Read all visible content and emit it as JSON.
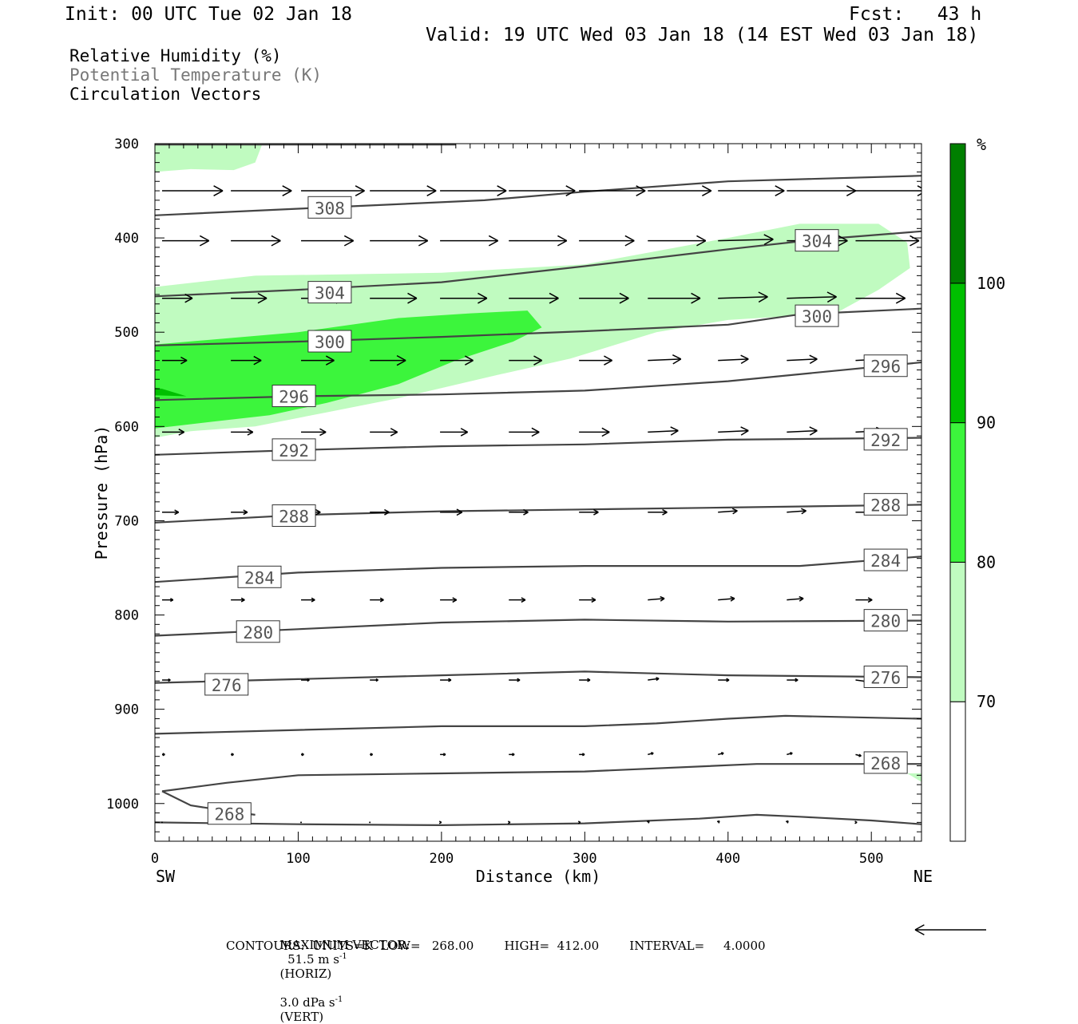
{
  "header": {
    "init": "Init: 00 UTC Tue 02 Jan 18",
    "fcst": "Fcst:   43 h",
    "valid": "Valid: 19 UTC Wed 03 Jan 18 (14 EST Wed 03 Jan 18)"
  },
  "legend_lines": {
    "rh": "Relative Humidity (%)",
    "theta": "Potential Temperature (K)",
    "vectors": "Circulation Vectors"
  },
  "footer": {
    "max_vector_label": "MAXIMUM VECTOR:",
    "horiz_value": "51.5 m s",
    "horiz_exp": "-1",
    "horiz_tag": "(HORIZ)",
    "vert_value": "3.0 dPa s",
    "vert_exp": "-1",
    "vert_tag": "(VERT)",
    "contours": "CONTOURS:  UNITS=K  LOW=   268.00        HIGH=  412.00        INTERVAL=     4.0000"
  },
  "colors": {
    "rh70": "#c0fbc0",
    "rh80": "#3cf53c",
    "rh90": "#00bf00",
    "rh100": "#007f00",
    "contour": "#444444",
    "text_grey": "#777777"
  },
  "chart_data": {
    "type": "cross-section",
    "x_axis": {
      "label": "Distance (km)",
      "range": [
        0,
        535
      ],
      "ticks": [
        0,
        100,
        200,
        300,
        400,
        500
      ],
      "left_end": "SW",
      "right_end": "NE"
    },
    "y_axis": {
      "label": "Pressure (hPa)",
      "range": [
        300,
        1040
      ],
      "inverted": true,
      "ticks": [
        300,
        400,
        500,
        600,
        700,
        800,
        900,
        1000
      ]
    },
    "colorbar": {
      "unit": "%",
      "levels": [
        70,
        80,
        90,
        100
      ],
      "colors": [
        "#c0fbc0",
        "#3cf53c",
        "#00bf00",
        "#007f00"
      ]
    },
    "rh_fill": [
      {
        "level": 70,
        "polygon": [
          [
            0,
            330
          ],
          [
            25,
            327
          ],
          [
            55,
            328
          ],
          [
            70,
            320
          ],
          [
            75,
            300
          ],
          [
            0,
            300
          ]
        ]
      },
      {
        "level": 70,
        "polygon": [
          [
            0,
            452
          ],
          [
            70,
            440
          ],
          [
            200,
            437
          ],
          [
            300,
            428
          ],
          [
            400,
            400
          ],
          [
            450,
            385
          ],
          [
            505,
            385
          ],
          [
            525,
            405
          ],
          [
            527,
            432
          ],
          [
            505,
            455
          ],
          [
            475,
            480
          ],
          [
            400,
            487
          ],
          [
            350,
            500
          ],
          [
            290,
            528
          ],
          [
            240,
            545
          ],
          [
            170,
            570
          ],
          [
            120,
            585
          ],
          [
            70,
            600
          ],
          [
            25,
            605
          ],
          [
            0,
            612
          ]
        ]
      },
      {
        "level": 80,
        "polygon": [
          [
            0,
            513
          ],
          [
            100,
            500
          ],
          [
            170,
            485
          ],
          [
            220,
            480
          ],
          [
            260,
            477
          ],
          [
            270,
            495
          ],
          [
            250,
            510
          ],
          [
            210,
            530
          ],
          [
            170,
            555
          ],
          [
            120,
            575
          ],
          [
            80,
            588
          ],
          [
            40,
            595
          ],
          [
            0,
            602
          ]
        ]
      },
      {
        "level": 90,
        "polygon": [
          [
            0,
            559
          ],
          [
            0,
            567
          ],
          [
            22,
            568
          ],
          [
            5,
            560
          ]
        ]
      },
      {
        "level": 70,
        "polygon": [
          [
            525,
            968
          ],
          [
            535,
            968
          ],
          [
            535,
            977
          ]
        ]
      }
    ],
    "theta_contours": [
      {
        "value": 268,
        "points": [
          [
            0,
            1020
          ],
          [
            100,
            1022
          ],
          [
            200,
            1023
          ],
          [
            300,
            1021
          ],
          [
            380,
            1016
          ],
          [
            420,
            1012
          ],
          [
            450,
            1014
          ],
          [
            500,
            1018
          ],
          [
            535,
            1022
          ]
        ],
        "labels": [
          [
            52,
            1011
          ]
        ]
      },
      {
        "value": 268,
        "points": [
          [
            5,
            987
          ],
          [
            50,
            978
          ],
          [
            100,
            970
          ],
          [
            200,
            968
          ],
          [
            300,
            966
          ],
          [
            420,
            958
          ],
          [
            535,
            958
          ]
        ],
        "labels": [
          [
            510,
            957
          ]
        ]
      },
      {
        "value": 268,
        "points": [
          [
            5,
            987
          ],
          [
            25,
            1002
          ],
          [
            55,
            1009
          ],
          [
            70,
            1012
          ]
        ]
      },
      {
        "value": 272,
        "points": [
          [
            0,
            926
          ],
          [
            100,
            922
          ],
          [
            200,
            918
          ],
          [
            300,
            918
          ],
          [
            350,
            915
          ],
          [
            400,
            910
          ],
          [
            440,
            907
          ],
          [
            535,
            910
          ]
        ],
        "labels": []
      },
      {
        "value": 276,
        "points": [
          [
            0,
            872
          ],
          [
            100,
            868
          ],
          [
            200,
            864
          ],
          [
            300,
            860
          ],
          [
            350,
            862
          ],
          [
            400,
            864
          ],
          [
            535,
            866
          ]
        ],
        "labels": [
          [
            50,
            874
          ],
          [
            510,
            866
          ]
        ]
      },
      {
        "value": 280,
        "points": [
          [
            0,
            822
          ],
          [
            100,
            815
          ],
          [
            200,
            808
          ],
          [
            300,
            805
          ],
          [
            400,
            807
          ],
          [
            535,
            806
          ]
        ],
        "labels": [
          [
            72,
            818
          ],
          [
            510,
            806
          ]
        ]
      },
      {
        "value": 284,
        "points": [
          [
            0,
            765
          ],
          [
            100,
            755
          ],
          [
            200,
            750
          ],
          [
            300,
            748
          ],
          [
            400,
            748
          ],
          [
            450,
            748
          ],
          [
            535,
            738
          ]
        ],
        "labels": [
          [
            73,
            760
          ],
          [
            510,
            742
          ]
        ]
      },
      {
        "value": 288,
        "points": [
          [
            0,
            702
          ],
          [
            100,
            694
          ],
          [
            200,
            690
          ],
          [
            300,
            688
          ],
          [
            400,
            686
          ],
          [
            535,
            683
          ]
        ],
        "labels": [
          [
            97,
            695
          ],
          [
            510,
            683
          ]
        ]
      },
      {
        "value": 292,
        "points": [
          [
            0,
            630
          ],
          [
            100,
            625
          ],
          [
            200,
            621
          ],
          [
            300,
            619
          ],
          [
            400,
            614
          ],
          [
            535,
            612
          ]
        ],
        "labels": [
          [
            97,
            625
          ],
          [
            510,
            614
          ]
        ]
      },
      {
        "value": 296,
        "points": [
          [
            0,
            572
          ],
          [
            100,
            568
          ],
          [
            200,
            566
          ],
          [
            300,
            562
          ],
          [
            400,
            552
          ],
          [
            535,
            532
          ]
        ],
        "labels": [
          [
            97,
            568
          ],
          [
            510,
            536
          ]
        ]
      },
      {
        "value": 300,
        "points": [
          [
            0,
            514
          ],
          [
            100,
            510
          ],
          [
            200,
            505
          ],
          [
            300,
            499
          ],
          [
            400,
            492
          ],
          [
            450,
            481
          ],
          [
            535,
            475
          ]
        ],
        "labels": [
          [
            122,
            510
          ],
          [
            462,
            483
          ]
        ]
      },
      {
        "value": 304,
        "points": [
          [
            0,
            462
          ],
          [
            100,
            455
          ],
          [
            200,
            447
          ],
          [
            300,
            430
          ],
          [
            400,
            412
          ],
          [
            460,
            402
          ],
          [
            535,
            393
          ]
        ],
        "labels": [
          [
            122,
            458
          ],
          [
            462,
            403
          ]
        ]
      },
      {
        "value": 308,
        "points": [
          [
            0,
            376
          ],
          [
            100,
            369
          ],
          [
            230,
            360
          ],
          [
            300,
            351
          ],
          [
            400,
            340
          ],
          [
            535,
            334
          ]
        ],
        "labels": [
          [
            122,
            368
          ]
        ]
      },
      {
        "value": 312,
        "points": [
          [
            0,
            301
          ],
          [
            210,
            301
          ]
        ],
        "labels": []
      }
    ],
    "vector_grid": {
      "x": [
        5,
        53,
        102,
        150,
        199,
        247,
        296,
        344,
        393,
        441,
        489
      ],
      "p": [
        350,
        403,
        464,
        530,
        606,
        691,
        784,
        869,
        948,
        1020
      ]
    },
    "vector_u": [
      [
        44,
        44,
        46,
        48,
        48,
        48,
        48,
        46,
        48,
        50,
        51.5
      ],
      [
        34,
        36,
        38,
        42,
        42,
        42,
        40,
        42,
        40,
        44,
        46
      ],
      [
        22,
        26,
        32,
        34,
        34,
        36,
        36,
        38,
        36,
        36,
        36
      ],
      [
        18,
        22,
        24,
        26,
        24,
        24,
        24,
        24,
        22,
        22,
        20
      ],
      [
        16,
        16,
        18,
        20,
        20,
        22,
        22,
        22,
        22,
        22,
        20
      ],
      [
        12,
        12,
        14,
        14,
        16,
        14,
        14,
        14,
        14,
        14,
        14
      ],
      [
        8,
        10,
        10,
        10,
        12,
        12,
        12,
        12,
        12,
        12,
        12
      ],
      [
        6,
        6,
        6,
        6,
        8,
        8,
        8,
        8,
        8,
        8,
        8
      ],
      [
        2,
        2,
        2,
        2,
        4,
        4,
        4,
        4,
        4,
        4,
        4
      ],
      [
        0,
        0,
        0,
        0,
        1,
        1,
        1,
        1,
        1,
        1,
        1
      ]
    ],
    "vector_w": [
      [
        0,
        0,
        0,
        0,
        0,
        0,
        0,
        0,
        0,
        0,
        0
      ],
      [
        0,
        0,
        0,
        0,
        0,
        0,
        0,
        0,
        -0.3,
        0,
        0
      ],
      [
        0,
        0,
        0,
        0,
        0,
        0,
        0,
        0,
        -0.3,
        -0.3,
        0
      ],
      [
        0,
        0,
        0,
        0,
        0,
        0,
        0,
        -0.3,
        -0.3,
        -0.3,
        -0.3
      ],
      [
        0,
        0,
        0,
        0,
        0,
        0,
        0,
        -0.3,
        -0.3,
        -0.3,
        -0.3
      ],
      [
        0,
        0,
        0,
        0,
        0,
        0,
        0,
        0,
        -0.3,
        -0.3,
        0
      ],
      [
        0,
        0,
        0,
        0,
        0,
        0,
        0,
        -0.3,
        -0.3,
        -0.3,
        0
      ],
      [
        0,
        0,
        0,
        0,
        0,
        0,
        0,
        -0.3,
        0,
        0,
        0.3
      ],
      [
        0,
        0,
        0,
        0,
        0,
        0,
        0,
        -0.3,
        -0.3,
        -0.3,
        0.3
      ],
      [
        0,
        0,
        0,
        0,
        0,
        0,
        0,
        -0.3,
        -0.3,
        -0.3,
        0
      ]
    ],
    "reference_vector_u": 51.5
  }
}
